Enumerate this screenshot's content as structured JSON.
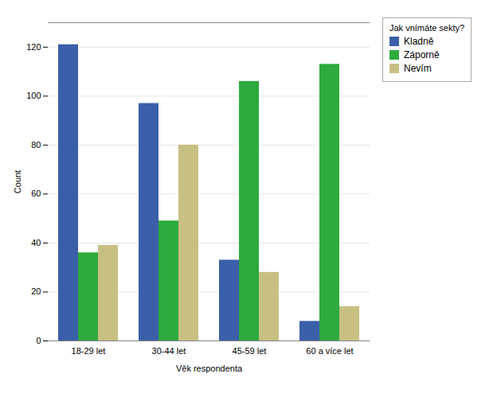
{
  "chart_data": {
    "type": "bar",
    "categories": [
      "18-29 let",
      "30-44 let",
      "45-59 let",
      "60 a více let"
    ],
    "series": [
      {
        "name": "Kladně",
        "color": "#3a5fa8",
        "values": [
          121,
          97,
          33,
          8
        ]
      },
      {
        "name": "Záporně",
        "color": "#2eaa3e",
        "values": [
          36,
          49,
          106,
          113
        ]
      },
      {
        "name": "Nevím",
        "color": "#c8bf82",
        "values": [
          39,
          80,
          28,
          14
        ]
      }
    ],
    "legend_title": "Jak vnímáte sekty?",
    "xlabel": "Věk respondenta",
    "ylabel": "Count",
    "ylim": [
      0,
      130
    ],
    "yticks": [
      0,
      20,
      40,
      60,
      80,
      100,
      120
    ],
    "grid": true,
    "legend": "right"
  }
}
